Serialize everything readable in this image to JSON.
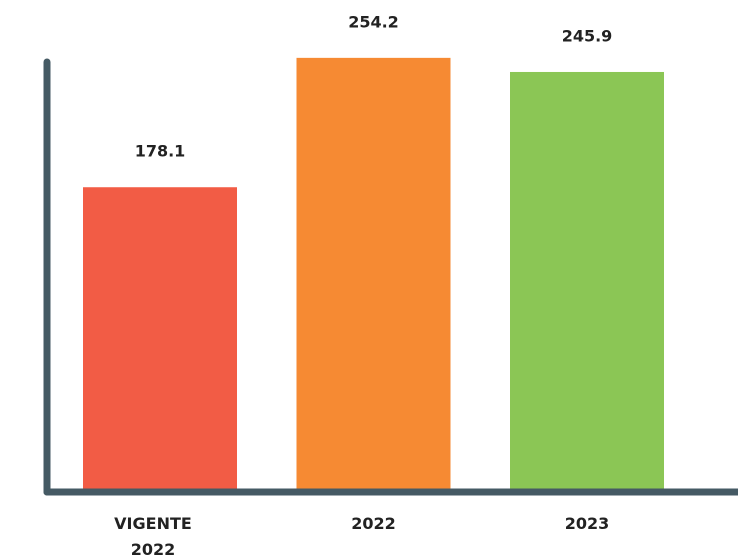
{
  "chart_data": {
    "type": "bar",
    "categories": [
      "VIGENTE 2022",
      "2022",
      "2023"
    ],
    "values": [
      178.1,
      254.2,
      245.9
    ],
    "colors": [
      "#f25c45",
      "#f68a33",
      "#8bc655"
    ],
    "ylim": [
      0,
      260
    ]
  }
}
